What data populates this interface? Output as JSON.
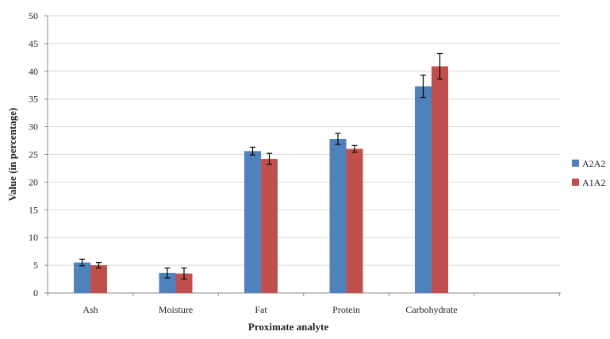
{
  "chart_data": {
    "type": "bar",
    "title": "",
    "xlabel": "Proximate analyte",
    "ylabel": "Value (in percentage)",
    "categories": [
      "Ash",
      "Moisture",
      "Fat",
      "Protein",
      "Carbohydrate"
    ],
    "series": [
      {
        "name": "A2A2",
        "color": "#4F81BD",
        "values": [
          5.5,
          3.6,
          25.6,
          27.8,
          37.3
        ],
        "errors": [
          0.6,
          0.9,
          0.7,
          1.0,
          2.0
        ]
      },
      {
        "name": "A1A2",
        "color": "#C0504D",
        "values": [
          5.0,
          3.5,
          24.2,
          26.0,
          40.9
        ],
        "errors": [
          0.5,
          1.0,
          1.0,
          0.6,
          2.3
        ]
      }
    ],
    "ylim": [
      0,
      50
    ],
    "yticks": [
      0,
      5,
      10,
      15,
      20,
      25,
      30,
      35,
      40,
      45,
      50
    ],
    "grid": true,
    "legend_position": "right"
  }
}
